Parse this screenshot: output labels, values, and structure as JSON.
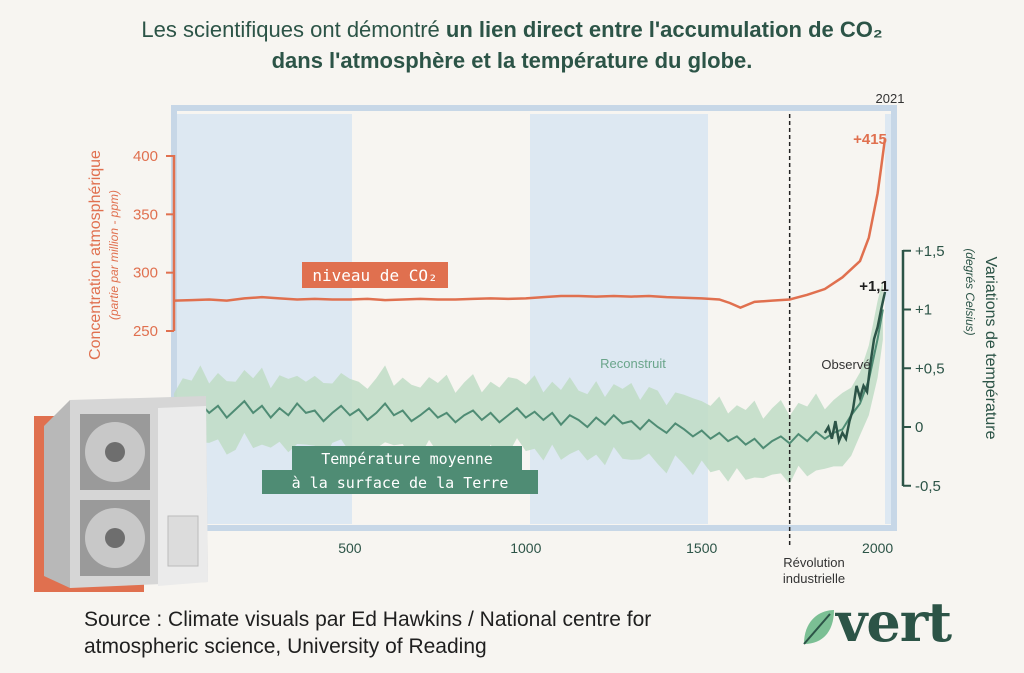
{
  "title": {
    "part1": "Les scientifiques ont démontré ",
    "bold1": "un lien direct entre l'accumulation de CO₂",
    "bold2": "dans l'atmosphère et la température du globe."
  },
  "source": "Source : Climate visuals par Ed Hawkins / National centre for atmospheric science, University of Reading",
  "logo": "vert",
  "colors": {
    "co2": "#e0704f",
    "temp": "#4f8c74",
    "band": "#bfdcc6",
    "stripe": "#dde8f2",
    "frame": "#c7d7e7",
    "dark": "#2c5447"
  },
  "chart_data": {
    "type": "line",
    "x_ticks": [
      "500",
      "1000",
      "1500",
      "2000"
    ],
    "year_label": "2021",
    "left_axis": {
      "label": "Concentration atmosphérique",
      "sublabel": "(partie par million - ppm)",
      "ticks": [
        "400",
        "350",
        "300",
        "250"
      ],
      "range": [
        250,
        430
      ]
    },
    "right_axis": {
      "label": "Variations de température",
      "sublabel": "(degrés Celsius)",
      "ticks": [
        "+1,5",
        "+1",
        "+0,5",
        "0",
        "-0,5"
      ],
      "range": [
        -0.5,
        1.5
      ]
    },
    "annotations": {
      "co2_label": "niveau de CO₂",
      "co2_end": "+415",
      "temp_end": "+1,1",
      "temp_label_line1": "Température moyenne",
      "temp_label_line2": "à la surface de la Terre",
      "reconstructed": "Reconstruit",
      "observed": "Observé",
      "revolution_line1": "Révolution",
      "revolution_line2": "industrielle"
    },
    "revolution_year": 1750,
    "co2_series": {
      "name": "niveau de CO₂",
      "points": [
        [
          0,
          276
        ],
        [
          50,
          276.5
        ],
        [
          100,
          277
        ],
        [
          150,
          276
        ],
        [
          200,
          278
        ],
        [
          250,
          279
        ],
        [
          300,
          278
        ],
        [
          350,
          277
        ],
        [
          400,
          277.5
        ],
        [
          450,
          277
        ],
        [
          500,
          277
        ],
        [
          550,
          277.5
        ],
        [
          600,
          276.5
        ],
        [
          650,
          277
        ],
        [
          700,
          277.5
        ],
        [
          750,
          277
        ],
        [
          800,
          277
        ],
        [
          850,
          277.5
        ],
        [
          900,
          278
        ],
        [
          950,
          277.5
        ],
        [
          1000,
          278
        ],
        [
          1050,
          279
        ],
        [
          1100,
          280
        ],
        [
          1150,
          280
        ],
        [
          1200,
          279.5
        ],
        [
          1250,
          280
        ],
        [
          1300,
          279.5
        ],
        [
          1350,
          280
        ],
        [
          1400,
          279
        ],
        [
          1450,
          278.5
        ],
        [
          1500,
          278
        ],
        [
          1550,
          277
        ],
        [
          1580,
          274
        ],
        [
          1610,
          270
        ],
        [
          1650,
          275
        ],
        [
          1700,
          276
        ],
        [
          1750,
          277
        ],
        [
          1800,
          281
        ],
        [
          1850,
          286
        ],
        [
          1900,
          296
        ],
        [
          1950,
          310
        ],
        [
          1975,
          330
        ],
        [
          2000,
          368
        ],
        [
          2010,
          390
        ],
        [
          2021,
          415
        ]
      ]
    },
    "temp_reconstructed": {
      "points": [
        [
          0,
          0.05
        ],
        [
          25,
          0.15
        ],
        [
          50,
          0.1
        ],
        [
          75,
          0.2
        ],
        [
          100,
          0.12
        ],
        [
          125,
          0.18
        ],
        [
          150,
          0.08
        ],
        [
          175,
          0.15
        ],
        [
          200,
          0.22
        ],
        [
          225,
          0.12
        ],
        [
          250,
          0.18
        ],
        [
          275,
          0.08
        ],
        [
          300,
          0.16
        ],
        [
          325,
          0.1
        ],
        [
          350,
          0.2
        ],
        [
          375,
          0.12
        ],
        [
          400,
          0.14
        ],
        [
          425,
          0.05
        ],
        [
          450,
          0.12
        ],
        [
          475,
          0.18
        ],
        [
          500,
          0.1
        ],
        [
          525,
          0.15
        ],
        [
          550,
          0.06
        ],
        [
          575,
          0.12
        ],
        [
          600,
          0.2
        ],
        [
          625,
          0.1
        ],
        [
          650,
          0.14
        ],
        [
          675,
          0.05
        ],
        [
          700,
          0.1
        ],
        [
          725,
          0.16
        ],
        [
          750,
          0.08
        ],
        [
          775,
          0.12
        ],
        [
          800,
          0.04
        ],
        [
          825,
          0.1
        ],
        [
          850,
          0.14
        ],
        [
          875,
          0.06
        ],
        [
          900,
          0.12
        ],
        [
          925,
          0.04
        ],
        [
          950,
          0.1
        ],
        [
          975,
          0.16
        ],
        [
          1000,
          0.08
        ],
        [
          1025,
          0.13
        ],
        [
          1050,
          0.06
        ],
        [
          1075,
          0.12
        ],
        [
          1100,
          0.02
        ],
        [
          1125,
          0.1
        ],
        [
          1150,
          0.06
        ],
        [
          1175,
          0.0
        ],
        [
          1200,
          0.08
        ],
        [
          1225,
          0.02
        ],
        [
          1250,
          0.1
        ],
        [
          1275,
          0.03
        ],
        [
          1300,
          0.05
        ],
        [
          1325,
          -0.02
        ],
        [
          1350,
          0.06
        ],
        [
          1375,
          0.0
        ],
        [
          1400,
          -0.05
        ],
        [
          1425,
          0.03
        ],
        [
          1450,
          -0.02
        ],
        [
          1475,
          -0.08
        ],
        [
          1500,
          -0.03
        ],
        [
          1525,
          -0.1
        ],
        [
          1550,
          -0.05
        ],
        [
          1575,
          -0.12
        ],
        [
          1600,
          -0.08
        ],
        [
          1625,
          -0.15
        ],
        [
          1650,
          -0.1
        ],
        [
          1675,
          -0.18
        ],
        [
          1700,
          -0.12
        ],
        [
          1725,
          -0.08
        ],
        [
          1750,
          -0.14
        ],
        [
          1775,
          -0.06
        ],
        [
          1800,
          -0.12
        ],
        [
          1825,
          -0.04
        ],
        [
          1850,
          -0.1
        ],
        [
          1875,
          -0.05
        ],
        [
          1900,
          -0.02
        ],
        [
          1925,
          0.1
        ],
        [
          1950,
          0.2
        ],
        [
          1975,
          0.4
        ],
        [
          2000,
          0.75
        ],
        [
          2015,
          1.0
        ]
      ]
    },
    "temp_observed": {
      "points": [
        [
          1850,
          -0.05
        ],
        [
          1860,
          0.0
        ],
        [
          1870,
          -0.1
        ],
        [
          1880,
          0.05
        ],
        [
          1890,
          -0.12
        ],
        [
          1900,
          -0.05
        ],
        [
          1910,
          -0.1
        ],
        [
          1920,
          0.05
        ],
        [
          1930,
          0.15
        ],
        [
          1940,
          0.35
        ],
        [
          1950,
          0.25
        ],
        [
          1960,
          0.35
        ],
        [
          1970,
          0.3
        ],
        [
          1980,
          0.55
        ],
        [
          1990,
          0.75
        ],
        [
          2000,
          0.85
        ],
        [
          2010,
          1.0
        ],
        [
          2021,
          1.15
        ]
      ]
    }
  }
}
